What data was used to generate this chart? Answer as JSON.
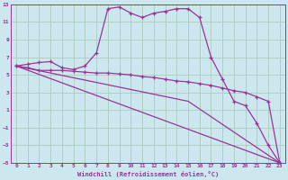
{
  "xlabel": "Windchill (Refroidissement éolien,°C)",
  "background_color": "#cce8ee",
  "grid_color": "#aaccbb",
  "line_color": "#993399",
  "xlim": [
    -0.5,
    23.5
  ],
  "ylim": [
    -5,
    13
  ],
  "xticks": [
    0,
    1,
    2,
    3,
    4,
    5,
    6,
    7,
    8,
    9,
    10,
    11,
    12,
    13,
    14,
    15,
    16,
    17,
    18,
    19,
    20,
    21,
    22,
    23
  ],
  "yticks": [
    -5,
    -3,
    -1,
    1,
    3,
    5,
    7,
    9,
    11,
    13
  ],
  "series1_x": [
    0,
    1,
    2,
    3,
    4,
    5,
    6,
    7,
    8,
    9,
    10,
    11,
    12,
    13,
    14,
    15,
    16,
    17,
    18,
    19,
    20,
    21,
    22,
    23
  ],
  "series1_y": [
    6.0,
    6.2,
    6.4,
    6.5,
    5.8,
    5.6,
    6.0,
    7.5,
    12.5,
    12.7,
    12.0,
    11.5,
    12.0,
    12.2,
    12.5,
    12.5,
    11.5,
    7.0,
    4.5,
    2.0,
    1.5,
    -0.5,
    -3.0,
    -5.0
  ],
  "series2_x": [
    0,
    1,
    2,
    3,
    4,
    5,
    6,
    7,
    8,
    9,
    10,
    11,
    12,
    13,
    14,
    15,
    16,
    17,
    18,
    19,
    20,
    21,
    22,
    23
  ],
  "series2_y": [
    6.0,
    5.8,
    5.5,
    5.5,
    5.5,
    5.4,
    5.3,
    5.2,
    5.2,
    5.1,
    5.0,
    4.8,
    4.7,
    4.5,
    4.3,
    4.2,
    4.0,
    3.8,
    3.5,
    3.2,
    3.0,
    2.5,
    2.0,
    -5.0
  ],
  "series3_x": [
    0,
    23
  ],
  "series3_y": [
    6.0,
    -5.0
  ],
  "series4_x": [
    0,
    15,
    23
  ],
  "series4_y": [
    6.0,
    2.0,
    -5.0
  ]
}
